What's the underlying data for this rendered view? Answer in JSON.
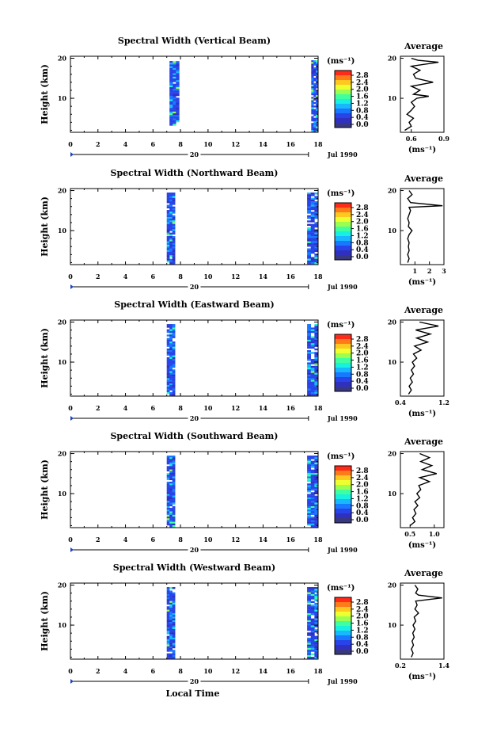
{
  "figure": {
    "xlabel": "Local Time",
    "date_label": "Jul 1990",
    "day_label": "20",
    "ylabel": "Height (km)",
    "avg_title": "Average",
    "unit_label": "(ms⁻¹)",
    "colorbar_ticks": [
      "2.8",
      "2.4",
      "2.0",
      "1.6",
      "1.2",
      "0.8",
      "0.4",
      "0.0"
    ],
    "colorbar_colors": [
      "#ff2a18",
      "#ff7a18",
      "#ffc820",
      "#eeff30",
      "#9cff50",
      "#40ffa0",
      "#18f0e0",
      "#18b8ff",
      "#1878ff",
      "#2844e8",
      "#3030c0",
      "#383880"
    ]
  },
  "chart_data": [
    {
      "type": "heatmap",
      "title": "Spectral Width (Vertical Beam)",
      "xlabel": "Local Time",
      "ylabel": "Height (km)",
      "xlim": [
        0,
        18
      ],
      "ylim": [
        1.5,
        20.5
      ],
      "xticks": [
        "0",
        "2",
        "4",
        "6",
        "8",
        "10",
        "12",
        "14",
        "16",
        "18"
      ],
      "yticks": [
        "10",
        "20"
      ],
      "data_blocks": [
        {
          "x_range": [
            7.2,
            7.9
          ],
          "y_range": [
            3.5,
            19.3
          ]
        },
        {
          "x_range": [
            17.5,
            18.0
          ],
          "y_range": [
            2.0,
            19.5
          ]
        }
      ],
      "average": {
        "title": "Average",
        "xlabel": "(ms⁻¹)",
        "xlim": [
          0.5,
          0.9
        ],
        "xticks": [
          "0.6",
          "0.9"
        ],
        "yticks": [
          "10",
          "20"
        ],
        "profile": [
          [
            0.54,
            2
          ],
          [
            0.6,
            3
          ],
          [
            0.58,
            4
          ],
          [
            0.62,
            5
          ],
          [
            0.56,
            6
          ],
          [
            0.6,
            7
          ],
          [
            0.63,
            8
          ],
          [
            0.6,
            9
          ],
          [
            0.65,
            10
          ],
          [
            0.76,
            10.5
          ],
          [
            0.62,
            11
          ],
          [
            0.68,
            12
          ],
          [
            0.6,
            13
          ],
          [
            0.8,
            14
          ],
          [
            0.64,
            15
          ],
          [
            0.62,
            16
          ],
          [
            0.68,
            17
          ],
          [
            0.6,
            18
          ],
          [
            0.85,
            19
          ],
          [
            0.66,
            19.5
          ],
          [
            0.6,
            20
          ]
        ]
      }
    },
    {
      "type": "heatmap",
      "title": "Spectral Width (Northward Beam)",
      "xlabel": "Local Time",
      "ylabel": "Height (km)",
      "xlim": [
        0,
        18
      ],
      "ylim": [
        1.5,
        20.5
      ],
      "xticks": [
        "0",
        "2",
        "4",
        "6",
        "8",
        "10",
        "12",
        "14",
        "16",
        "18"
      ],
      "yticks": [
        "10",
        "20"
      ],
      "data_blocks": [
        {
          "x_range": [
            7.0,
            7.6
          ],
          "y_range": [
            1.8,
            19.5
          ]
        },
        {
          "x_range": [
            17.2,
            18.0
          ],
          "y_range": [
            2.0,
            19.5
          ]
        }
      ],
      "average": {
        "title": "Average",
        "xlabel": "(ms⁻¹)",
        "xlim": [
          0,
          3
        ],
        "xticks": [
          "1",
          "2",
          "3"
        ],
        "yticks": [
          "10",
          "20"
        ],
        "profile": [
          [
            0.5,
            2
          ],
          [
            0.6,
            3
          ],
          [
            0.5,
            4
          ],
          [
            0.6,
            5
          ],
          [
            0.55,
            6
          ],
          [
            0.6,
            7
          ],
          [
            0.5,
            8
          ],
          [
            0.6,
            9
          ],
          [
            0.8,
            10
          ],
          [
            0.55,
            11
          ],
          [
            0.6,
            12
          ],
          [
            0.5,
            13
          ],
          [
            0.6,
            14
          ],
          [
            0.7,
            15
          ],
          [
            0.6,
            15.8
          ],
          [
            2.9,
            16.2
          ],
          [
            0.7,
            17
          ],
          [
            0.5,
            18
          ],
          [
            0.8,
            19
          ],
          [
            0.6,
            20
          ]
        ]
      }
    },
    {
      "type": "heatmap",
      "title": "Spectral Width (Eastward Beam)",
      "xlabel": "Local Time",
      "ylabel": "Height (km)",
      "xlim": [
        0,
        18
      ],
      "ylim": [
        1.5,
        20.5
      ],
      "xticks": [
        "0",
        "2",
        "4",
        "6",
        "8",
        "10",
        "12",
        "14",
        "16",
        "18"
      ],
      "yticks": [
        "10",
        "20"
      ],
      "data_blocks": [
        {
          "x_range": [
            7.0,
            7.6
          ],
          "y_range": [
            1.8,
            19.5
          ]
        },
        {
          "x_range": [
            17.2,
            18.0
          ],
          "y_range": [
            2.0,
            19.5
          ]
        }
      ],
      "average": {
        "title": "Average",
        "xlabel": "(ms⁻¹)",
        "xlim": [
          0.4,
          1.2
        ],
        "xticks": [
          "0.4",
          "1.2"
        ],
        "yticks": [
          "10",
          "20"
        ],
        "profile": [
          [
            0.55,
            2
          ],
          [
            0.6,
            3
          ],
          [
            0.56,
            4
          ],
          [
            0.62,
            5
          ],
          [
            0.58,
            6
          ],
          [
            0.64,
            7
          ],
          [
            0.6,
            8
          ],
          [
            0.66,
            9
          ],
          [
            0.62,
            10
          ],
          [
            0.7,
            11
          ],
          [
            0.64,
            12
          ],
          [
            0.78,
            13
          ],
          [
            0.66,
            14
          ],
          [
            0.9,
            15
          ],
          [
            0.7,
            16
          ],
          [
            0.95,
            17
          ],
          [
            0.68,
            18
          ],
          [
            1.1,
            19
          ],
          [
            0.75,
            20
          ]
        ]
      }
    },
    {
      "type": "heatmap",
      "title": "Spectral Width (Southward Beam)",
      "xlabel": "Local Time",
      "ylabel": "Height (km)",
      "xlim": [
        0,
        18
      ],
      "ylim": [
        1.5,
        20.5
      ],
      "xticks": [
        "0",
        "2",
        "4",
        "6",
        "8",
        "10",
        "12",
        "14",
        "16",
        "18"
      ],
      "yticks": [
        "10",
        "20"
      ],
      "data_blocks": [
        {
          "x_range": [
            7.0,
            7.6
          ],
          "y_range": [
            1.8,
            19.5
          ]
        },
        {
          "x_range": [
            17.2,
            18.0
          ],
          "y_range": [
            2.0,
            19.5
          ]
        }
      ],
      "average": {
        "title": "Average",
        "xlabel": "(ms⁻¹)",
        "xlim": [
          0.3,
          1.2
        ],
        "xticks": [
          "0.5",
          "1.0"
        ],
        "yticks": [
          "10",
          "20"
        ],
        "profile": [
          [
            0.5,
            2
          ],
          [
            0.6,
            3
          ],
          [
            0.55,
            4
          ],
          [
            0.62,
            5
          ],
          [
            0.58,
            6
          ],
          [
            0.66,
            7
          ],
          [
            0.6,
            8
          ],
          [
            0.7,
            9
          ],
          [
            0.64,
            10
          ],
          [
            0.72,
            11
          ],
          [
            0.68,
            12
          ],
          [
            0.9,
            13
          ],
          [
            0.7,
            14
          ],
          [
            1.05,
            15
          ],
          [
            0.75,
            16
          ],
          [
            0.95,
            17
          ],
          [
            0.72,
            18
          ],
          [
            0.9,
            19
          ],
          [
            0.7,
            20
          ]
        ]
      }
    },
    {
      "type": "heatmap",
      "title": "Spectral Width (Westward Beam)",
      "xlabel": "Local Time",
      "ylabel": "Height (km)",
      "xlim": [
        0,
        18
      ],
      "ylim": [
        1.5,
        20.5
      ],
      "xticks": [
        "0",
        "2",
        "4",
        "6",
        "8",
        "10",
        "12",
        "14",
        "16",
        "18"
      ],
      "yticks": [
        "10",
        "20"
      ],
      "data_blocks": [
        {
          "x_range": [
            7.0,
            7.6
          ],
          "y_range": [
            1.8,
            19.5
          ]
        },
        {
          "x_range": [
            17.2,
            18.0
          ],
          "y_range": [
            2.0,
            19.5
          ]
        }
      ],
      "average": {
        "title": "Average",
        "xlabel": "(ms⁻¹)",
        "xlim": [
          0.2,
          1.4
        ],
        "xticks": [
          "0.2",
          "1.4"
        ],
        "yticks": [
          "10",
          "20"
        ],
        "profile": [
          [
            0.5,
            2
          ],
          [
            0.55,
            3
          ],
          [
            0.5,
            4
          ],
          [
            0.56,
            5
          ],
          [
            0.52,
            6
          ],
          [
            0.58,
            7
          ],
          [
            0.54,
            8
          ],
          [
            0.6,
            9
          ],
          [
            0.55,
            10
          ],
          [
            0.62,
            11
          ],
          [
            0.58,
            12
          ],
          [
            0.7,
            13
          ],
          [
            0.6,
            14
          ],
          [
            0.66,
            15
          ],
          [
            0.62,
            16
          ],
          [
            1.35,
            16.8
          ],
          [
            0.7,
            17.5
          ],
          [
            0.62,
            18
          ],
          [
            0.68,
            19
          ],
          [
            0.6,
            20
          ]
        ]
      }
    }
  ]
}
